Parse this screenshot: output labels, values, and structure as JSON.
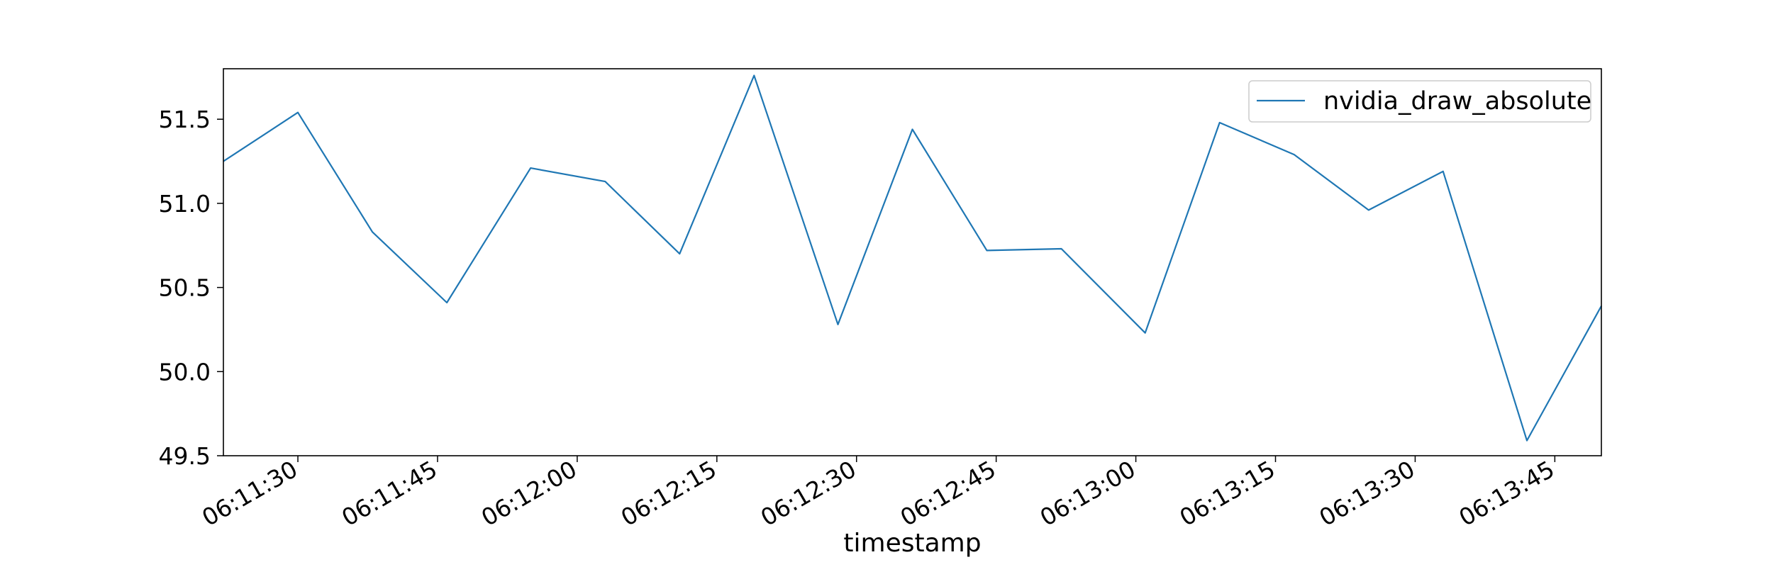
{
  "chart_data": {
    "type": "line",
    "title": "",
    "xlabel": "timestamp",
    "ylabel": "",
    "x": [
      "06:11:22",
      "06:11:30",
      "06:11:38",
      "06:11:46",
      "06:11:55",
      "06:12:03",
      "06:12:11",
      "06:12:19",
      "06:12:28",
      "06:12:36",
      "06:12:44",
      "06:12:52",
      "06:13:01",
      "06:13:09",
      "06:13:17",
      "06:13:25",
      "06:13:33",
      "06:13:42",
      "06:13:50"
    ],
    "xlim": [
      "06:11:22",
      "06:13:50"
    ],
    "x_ticks": [
      "06:11:30",
      "06:11:45",
      "06:12:00",
      "06:12:15",
      "06:12:30",
      "06:12:45",
      "06:13:00",
      "06:13:15",
      "06:13:30",
      "06:13:45"
    ],
    "ylim": [
      49.5,
      51.8
    ],
    "y_ticks": [
      "49.5",
      "50.0",
      "50.5",
      "51.0",
      "51.5"
    ],
    "series": [
      {
        "name": "nvidia_draw_absolute",
        "color": "#1f77b4",
        "values": [
          51.25,
          51.54,
          50.83,
          50.41,
          51.21,
          51.13,
          50.7,
          51.76,
          50.28,
          51.44,
          50.72,
          50.73,
          50.23,
          51.48,
          51.29,
          50.96,
          51.19,
          49.59,
          50.39
        ]
      }
    ],
    "grid": false,
    "legend_position": "top-right"
  }
}
